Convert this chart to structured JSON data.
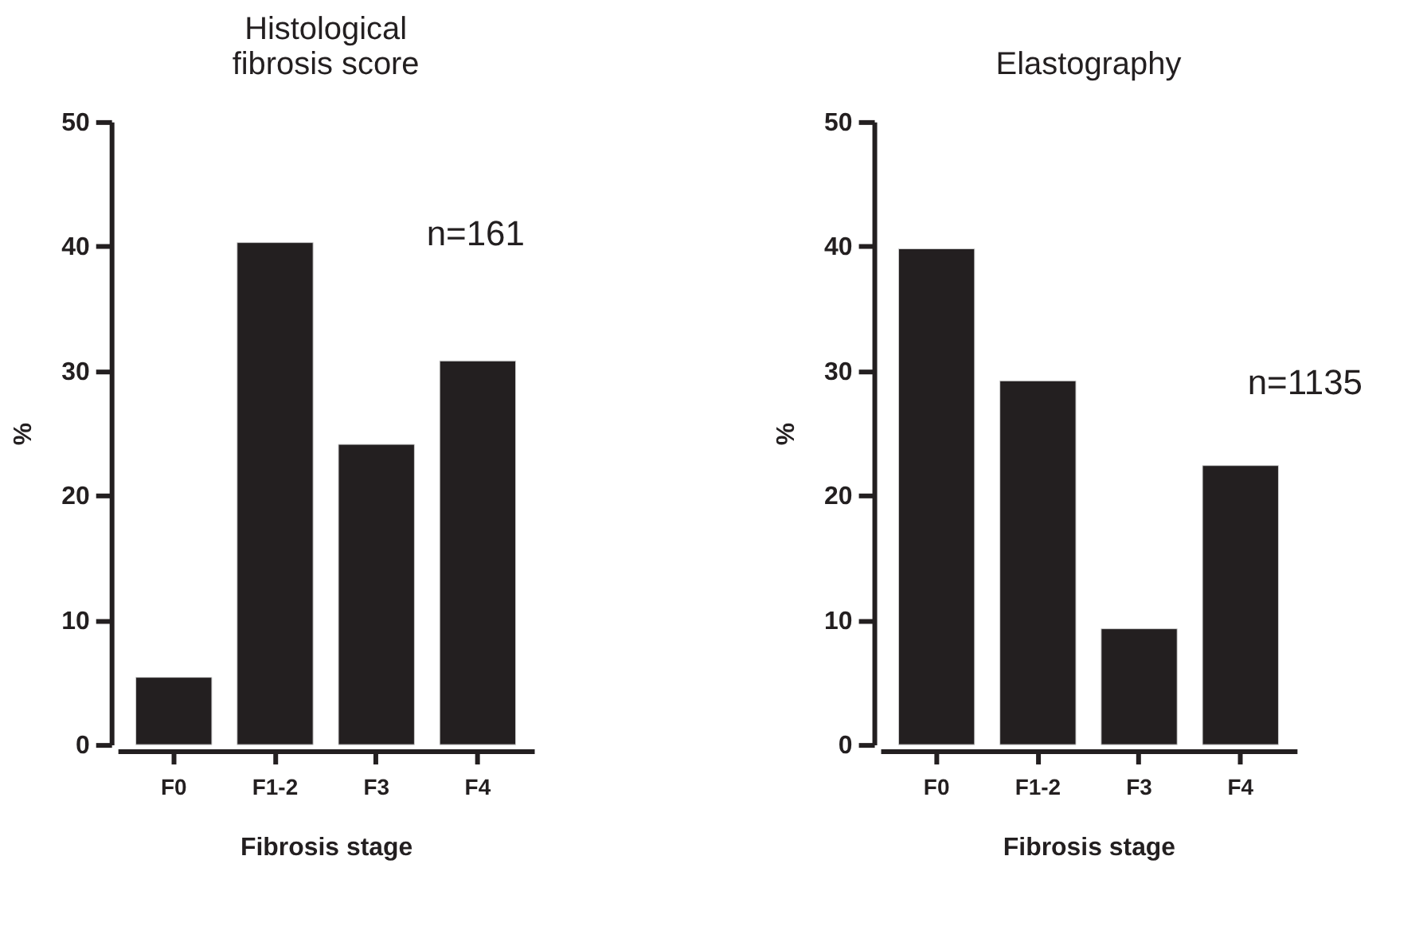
{
  "chart_data": [
    {
      "type": "bar",
      "title": "Histological\nfibrosis score",
      "xlabel": "Fibrosis stage",
      "ylabel": "%",
      "categories": [
        "F0",
        "F1-2",
        "F3",
        "F4"
      ],
      "values": [
        5.4,
        40.3,
        24.1,
        30.8
      ],
      "color": "#231f20",
      "ylim": [
        0,
        50
      ],
      "yticks": [
        0,
        10,
        20,
        30,
        40,
        50
      ],
      "grid": false,
      "annotations": [
        "n=161"
      ]
    },
    {
      "type": "bar",
      "title": "Elastography",
      "xlabel": "Fibrosis stage",
      "ylabel": "%",
      "categories": [
        "F0",
        "F1-2",
        "F3",
        "F4"
      ],
      "values": [
        39.8,
        29.2,
        9.3,
        22.4
      ],
      "color": "#231f20",
      "ylim": [
        0,
        50
      ],
      "yticks": [
        0,
        10,
        20,
        30,
        40,
        50
      ],
      "grid": false,
      "annotations": [
        "n=1135"
      ]
    }
  ]
}
